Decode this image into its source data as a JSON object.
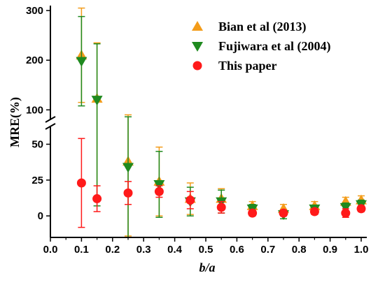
{
  "chart_data": {
    "type": "scatter",
    "xlabel": "b/a",
    "ylabel": "MRE(%)",
    "xlim": [
      0.0,
      1.0
    ],
    "x_ticks": [
      "0.0",
      "0.1",
      "0.2",
      "0.3",
      "0.4",
      "0.5",
      "0.6",
      "0.7",
      "0.8",
      "0.9",
      "1.0"
    ],
    "y_ticks_upper": [
      "100",
      "200",
      "300"
    ],
    "y_ticks_lower": [
      "0",
      "25",
      "50"
    ],
    "axis_break": {
      "lower_ylim": [
        -15,
        60
      ],
      "upper_ylim": [
        85,
        310
      ]
    },
    "legend_position": "top-right",
    "series": [
      {
        "name": "Bian et al (2013)",
        "marker": "triangle-up",
        "color": "#f39c1a",
        "points": [
          {
            "x": 0.1,
            "y": 210,
            "err": 95
          },
          {
            "x": 0.15,
            "y": 123,
            "err": 112
          },
          {
            "x": 0.25,
            "y": 38,
            "err": 52
          },
          {
            "x": 0.35,
            "y": 24,
            "err": 24
          },
          {
            "x": 0.45,
            "y": 12,
            "err": 11
          },
          {
            "x": 0.55,
            "y": 12,
            "err": 7
          },
          {
            "x": 0.65,
            "y": 7,
            "err": 3
          },
          {
            "x": 0.75,
            "y": 5,
            "err": 3
          },
          {
            "x": 0.85,
            "y": 7,
            "err": 3
          },
          {
            "x": 0.95,
            "y": 10,
            "err": 3
          },
          {
            "x": 1.0,
            "y": 11,
            "err": 3
          }
        ]
      },
      {
        "name": "Fujiwara et al (2004)",
        "marker": "triangle-down",
        "color": "#1f8a1f",
        "points": [
          {
            "x": 0.1,
            "y": 198,
            "err": 90
          },
          {
            "x": 0.15,
            "y": 120,
            "err": 113
          },
          {
            "x": 0.25,
            "y": 34,
            "err": 52
          },
          {
            "x": 0.35,
            "y": 22,
            "err": 23
          },
          {
            "x": 0.45,
            "y": 10,
            "err": 10
          },
          {
            "x": 0.55,
            "y": 10,
            "err": 8
          },
          {
            "x": 0.65,
            "y": 5,
            "err": 3
          },
          {
            "x": 0.75,
            "y": 1,
            "err": 3
          },
          {
            "x": 0.85,
            "y": 5,
            "err": 2
          },
          {
            "x": 0.95,
            "y": 6,
            "err": 3
          },
          {
            "x": 1.0,
            "y": 8,
            "err": 3
          }
        ]
      },
      {
        "name": "This paper",
        "marker": "circle",
        "color": "#ff1a1a",
        "points": [
          {
            "x": 0.1,
            "y": 23,
            "err": 31
          },
          {
            "x": 0.15,
            "y": 12,
            "err": 9
          },
          {
            "x": 0.25,
            "y": 16,
            "err": 8
          },
          {
            "x": 0.35,
            "y": 17,
            "err": 4
          },
          {
            "x": 0.45,
            "y": 11,
            "err": 6
          },
          {
            "x": 0.55,
            "y": 6,
            "err": 4
          },
          {
            "x": 0.65,
            "y": 2,
            "err": 2
          },
          {
            "x": 0.75,
            "y": 2,
            "err": 2
          },
          {
            "x": 0.85,
            "y": 3,
            "err": 2
          },
          {
            "x": 0.95,
            "y": 2,
            "err": 3
          },
          {
            "x": 1.0,
            "y": 5,
            "err": 2
          }
        ]
      }
    ]
  }
}
